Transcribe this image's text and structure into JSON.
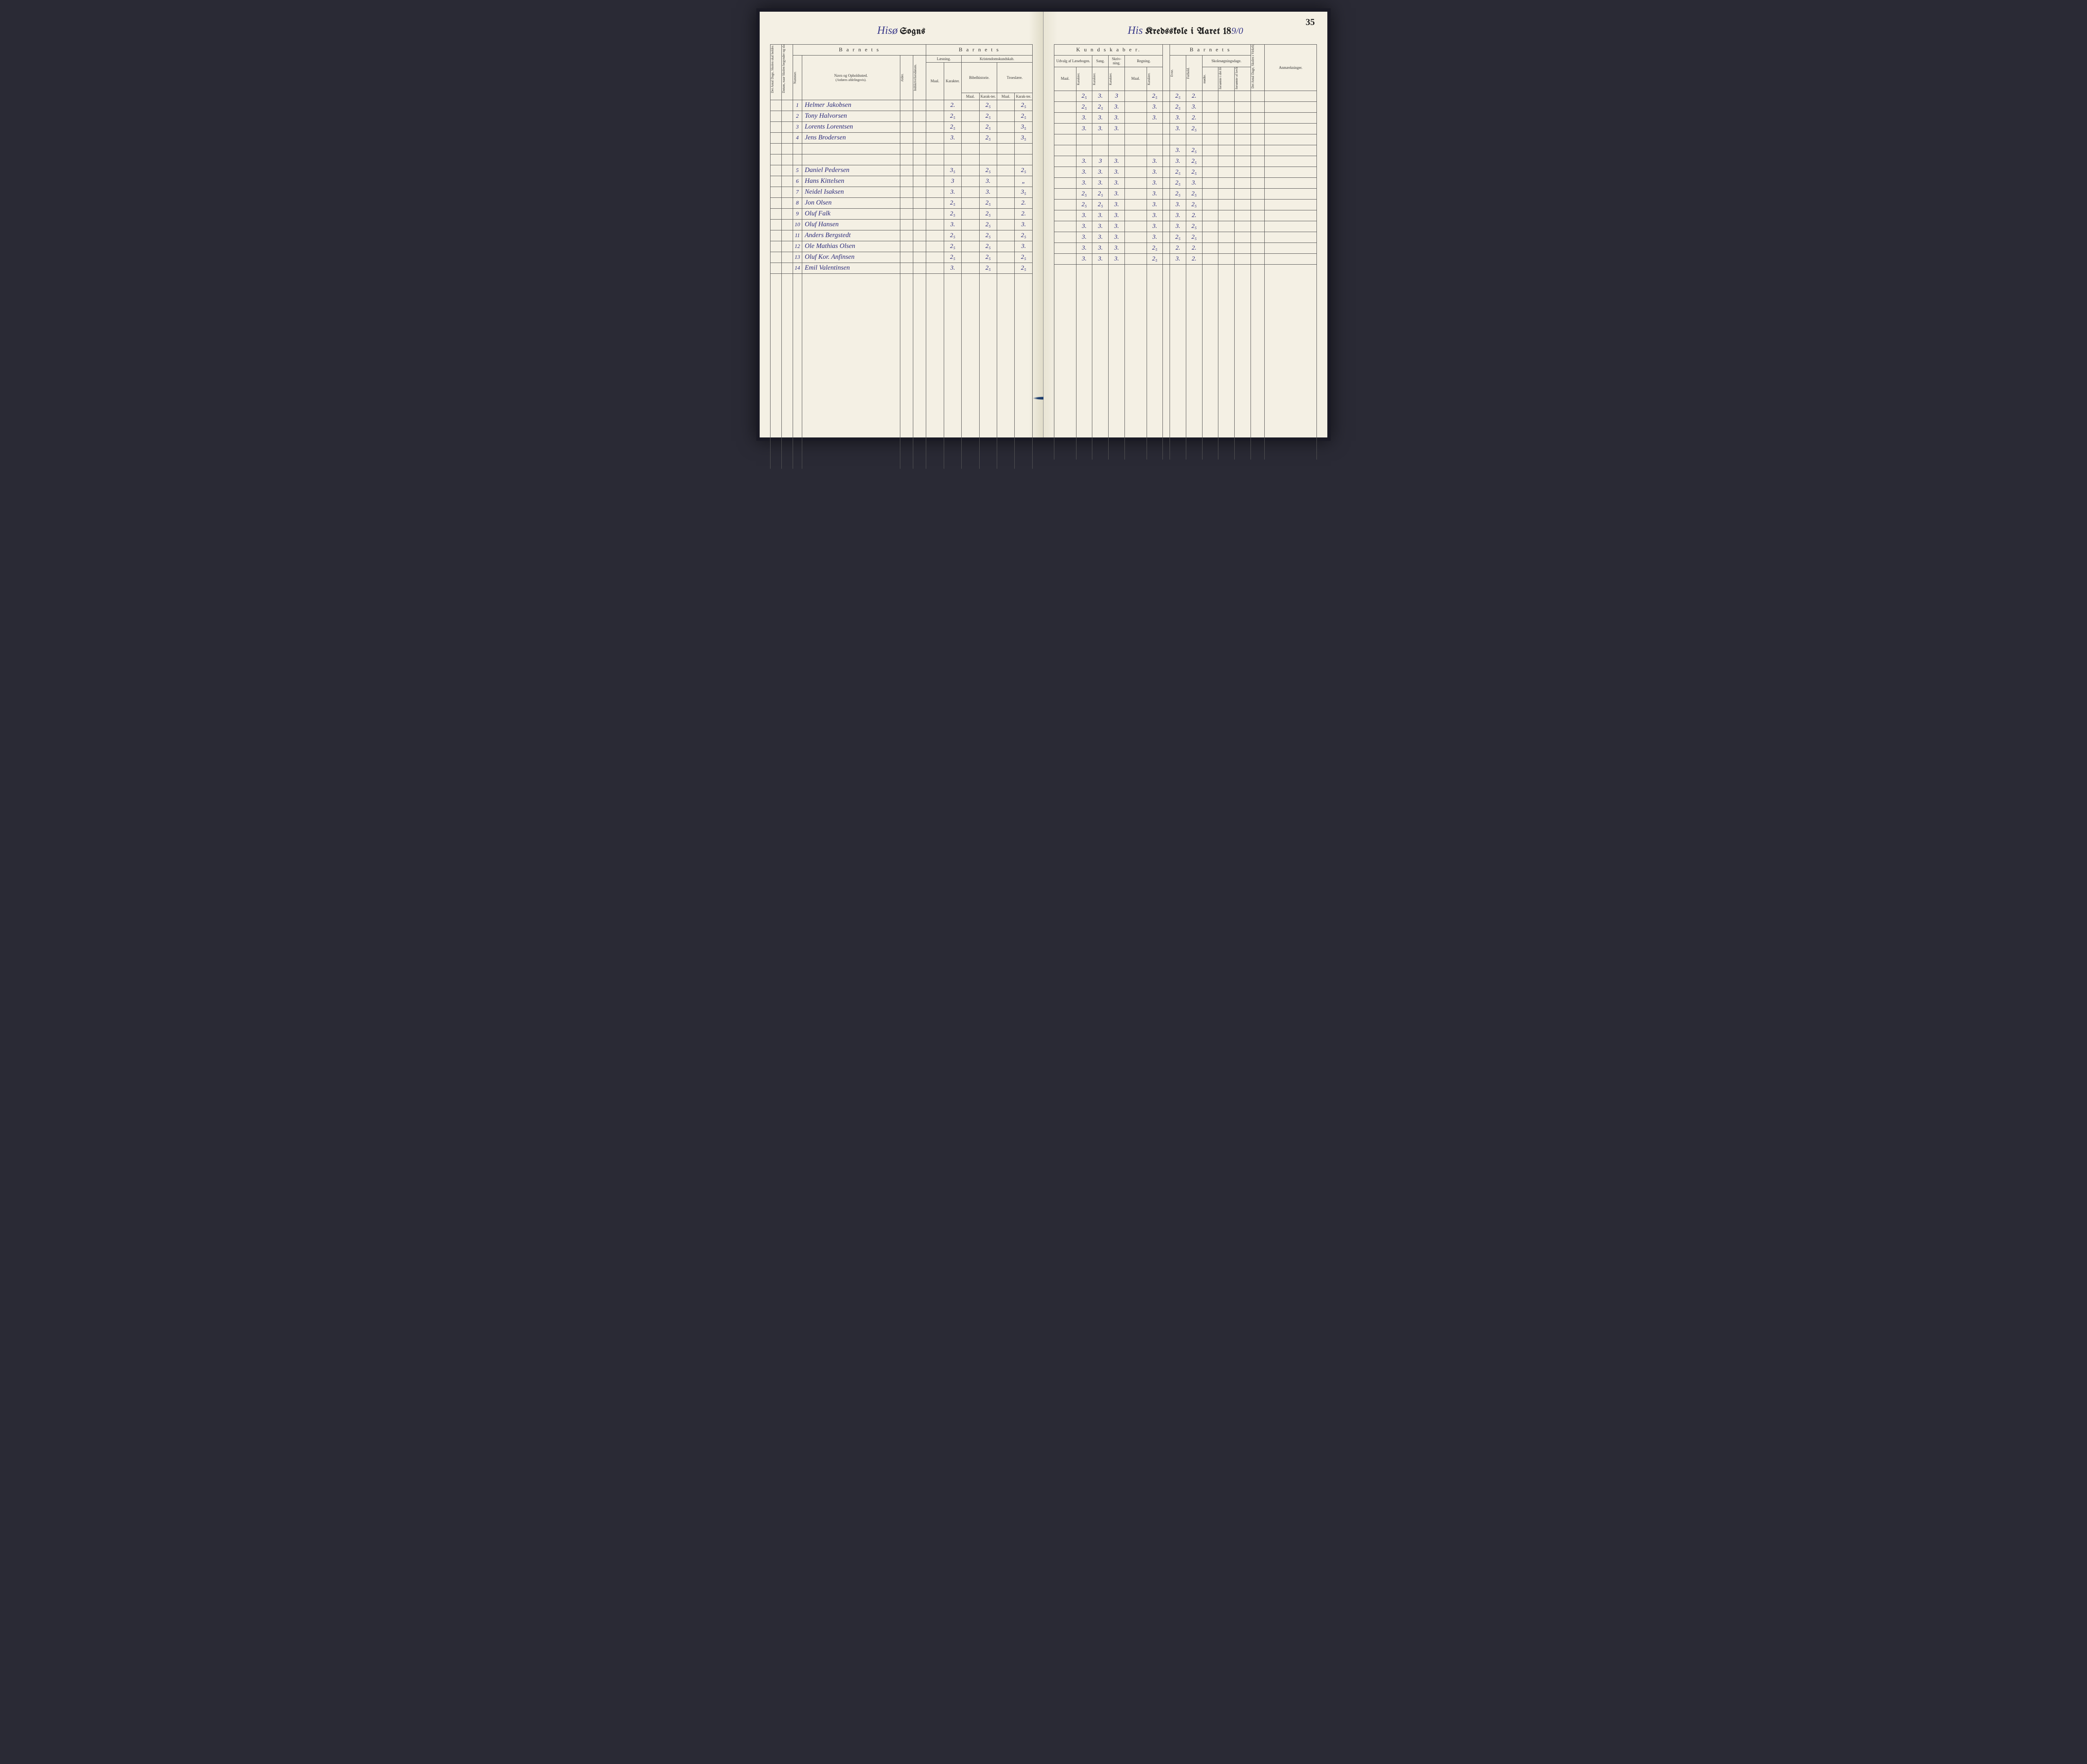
{
  "page_number": "35",
  "left_title": {
    "script": "Hisø",
    "gothic": "Sogns"
  },
  "right_title": {
    "script": "His",
    "gothic_pre": "Kredsskole i Aaret 18",
    "year": "9/0"
  },
  "headers": {
    "left": {
      "vcol1": "Det Antal Dage, Skolen skal holdes i Kredsen.",
      "vcol2": "Datum, naar Skolen begynder og slutter hver Omgang.",
      "barnets": "B a r n e t s",
      "nummer": "Nummer.",
      "navn": "Navn og Opholdssted.",
      "navn_sub": "(Anføres afdelingsvis).",
      "alder": "Alder.",
      "indskr": "Indskrivelsesdatum.",
      "laesning": "Læsning.",
      "kristendom": "Kristendomskundskab.",
      "bibel": "Bibelhistorie.",
      "troes": "Troeslære.",
      "maal": "Maal.",
      "karakter": "Karakter.",
      "karakter_s": "Karak-ter."
    },
    "right": {
      "kundskaber": "K u n d s k a b e r.",
      "barnets": "B a r n e t s",
      "udvalg": "Udvalg af Læsebogen.",
      "sang": "Sang.",
      "skriv": "Skriv-ning.",
      "regning": "Regning.",
      "maal": "Maal.",
      "karakter": "Karakter.",
      "evne": "Evne.",
      "forhold": "Forhold.",
      "skoledage": "Skolesøgningsdage.",
      "modte": "mødte.",
      "fors1": "forsømte i det Hele.",
      "fors2": "forsømte af lovlig Grund.",
      "vcol3": "Det Antal Dage, Skolen i Virkeligheden er holdt.",
      "anm": "Anmærkninger."
    }
  },
  "rows": [
    {
      "n": "1",
      "name": "Helmer Jakobsen",
      "l_m": "2.",
      "b_m": "2₅",
      "t_k": "2₅",
      "u_k": "2₅",
      "sa": "3.",
      "sk": "3",
      "r_k": "2₅",
      "ev": "2₅",
      "fo": "2."
    },
    {
      "n": "2",
      "name": "Tony Halvorsen",
      "l_m": "2₅",
      "b_m": "2₅",
      "t_k": "2₅",
      "u_k": "2₅",
      "sa": "2₅",
      "sk": "3.",
      "r_k": "3.",
      "ev": "2₅",
      "fo": "3."
    },
    {
      "n": "3",
      "name": "Lorents Lorentsen",
      "l_m": "2₅",
      "b_m": "2₅",
      "t_k": "3₅",
      "u_k": "3.",
      "sa": "3.",
      "sk": "3.",
      "r_k": "3.",
      "ev": "3.",
      "fo": "2."
    },
    {
      "n": "4",
      "name": "Jens Brodersen",
      "l_m": "3.",
      "b_m": "2₅",
      "t_k": "3₅",
      "u_k": "3.",
      "sa": "3.",
      "sk": "3.",
      "r_k": "",
      "ev": "3.",
      "fo": "2₅"
    },
    {
      "gap": true
    },
    {
      "n": "",
      "name": "",
      "l_m": "",
      "b_m": "",
      "t_k": "",
      "u_k": "",
      "sa": "",
      "sk": "",
      "r_k": "",
      "ev": "3.",
      "fo": "2₅"
    },
    {
      "n": "5",
      "name": "Daniel Pedersen",
      "l_m": "3₅",
      "b_m": "2₅",
      "t_k": "2₅",
      "u_k": "3.",
      "sa": "3",
      "sk": "3.",
      "r_k": "3.",
      "ev": "3.",
      "fo": "2₅"
    },
    {
      "n": "6",
      "name": "Hans Kittelsen",
      "l_m": "3",
      "b_m": "3.",
      "t_k": "„",
      "u_k": "3.",
      "sa": "3.",
      "sk": "3.",
      "r_k": "3.",
      "ev": "2₅",
      "fo": "2₅"
    },
    {
      "n": "7",
      "name": "Neidel Isaksen",
      "l_m": "3.",
      "b_m": "3.",
      "t_k": "3₅",
      "u_k": "3.",
      "sa": "3.",
      "sk": "3.",
      "r_k": "3.",
      "ev": "2₅",
      "fo": "3."
    },
    {
      "n": "8",
      "name": "Jon Olsen",
      "l_m": "2₅",
      "b_m": "2₅",
      "t_k": "2.",
      "u_k": "2₅",
      "sa": "2₅",
      "sk": "3.",
      "r_k": "3.",
      "ev": "2₅",
      "fo": "2₅"
    },
    {
      "n": "9",
      "name": "Oluf Falk",
      "l_m": "2₅",
      "b_m": "2₅",
      "t_k": "2.",
      "u_k": "2₅",
      "sa": "2₅",
      "sk": "3.",
      "r_k": "3.",
      "ev": "3.",
      "fo": "2₅"
    },
    {
      "n": "10",
      "name": "Oluf Hansen",
      "l_m": "3.",
      "b_m": "2₅",
      "t_k": "3.",
      "u_k": "3.",
      "sa": "3.",
      "sk": "3.",
      "r_k": "3.",
      "ev": "3.",
      "fo": "2."
    },
    {
      "n": "11",
      "name": "Anders Bergstedt",
      "l_m": "2₅",
      "b_m": "2₅",
      "t_k": "2₅",
      "u_k": "3.",
      "sa": "3.",
      "sk": "3.",
      "r_k": "3.",
      "ev": "3.",
      "fo": "2₅"
    },
    {
      "n": "12",
      "name": "Ole Mathias Olsen",
      "l_m": "2₅",
      "b_m": "2₅",
      "t_k": "3.",
      "u_k": "3.",
      "sa": "3.",
      "sk": "3.",
      "r_k": "3.",
      "ev": "2₅",
      "fo": "2₅"
    },
    {
      "n": "13",
      "name": "Oluf Kor. Anfinsen",
      "l_m": "2₅",
      "b_m": "2₅",
      "t_k": "2₅",
      "u_k": "3.",
      "sa": "3.",
      "sk": "3.",
      "r_k": "2₅",
      "ev": "2.",
      "fo": "2."
    },
    {
      "n": "14",
      "name": "Emil Valentinsen",
      "l_m": "3.",
      "b_m": "2₅",
      "t_k": "2₅",
      "u_k": "3.",
      "sa": "3.",
      "sk": "3.",
      "r_k": "2₅",
      "ev": "3.",
      "fo": "2."
    }
  ],
  "colors": {
    "paper": "#f4f0e4",
    "ink_print": "#333333",
    "ink_hand": "#2a2a7a",
    "rule": "#555555",
    "cover": "#2a2a35"
  }
}
